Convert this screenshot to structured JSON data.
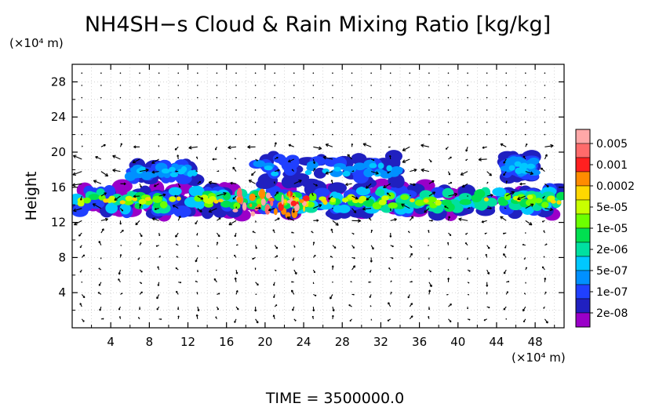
{
  "chart_data": {
    "type": "heatmap",
    "title": "NH4SH−s Cloud & Rain Mixing Ratio [kg/kg]",
    "ylabel": "Height",
    "y_unit": "(×10⁴ m)",
    "x_unit": "(×10⁴ m)",
    "x_ticks": [
      4,
      8,
      12,
      16,
      20,
      24,
      28,
      32,
      36,
      40,
      44,
      48
    ],
    "y_ticks": [
      4,
      8,
      12,
      16,
      20,
      24,
      28
    ],
    "xlim": [
      0,
      51
    ],
    "ylim": [
      0,
      30
    ],
    "grid": true,
    "colorbar": {
      "labels": [
        "0.005",
        "0.001",
        "0.0002",
        "5e-05",
        "1e-05",
        "2e-06",
        "5e-07",
        "1e-07",
        "2e-08"
      ],
      "colors": [
        "#ffa8a8",
        "#ff6b6b",
        "#ff2020",
        "#ff8c00",
        "#ffd700",
        "#c8ff00",
        "#6cff00",
        "#00e050",
        "#00e0a0",
        "#00c8ff",
        "#0090ff",
        "#2040ff",
        "#2020c0",
        "#9a00c8"
      ]
    },
    "cloud_layers": [
      {
        "x_start": 0,
        "x_end": 51,
        "y_bottom": 12.5,
        "y_top": 16.5,
        "peak": "1e-05 to 0.001"
      },
      {
        "x_start": 6,
        "x_end": 13,
        "y_bottom": 16.5,
        "y_top": 19,
        "peak": "1e-07"
      },
      {
        "x_start": 19,
        "x_end": 34,
        "y_bottom": 16,
        "y_top": 20,
        "peak": "5e-07 to 2e-06"
      },
      {
        "x_start": 45,
        "x_end": 48,
        "y_bottom": 16.5,
        "y_top": 20,
        "peak": "1e-07"
      }
    ],
    "time_label": "TIME = 3500000.0"
  }
}
